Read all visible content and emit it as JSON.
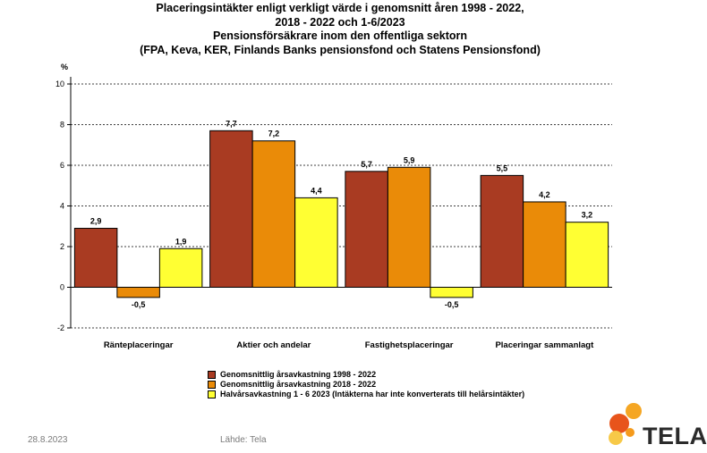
{
  "title_lines": [
    "Placeringsintäkter enligt verkligt värde i genomsnitt åren 1998 - 2022,",
    "2018 - 2022 och 1-6/2023",
    "Pensionsförsäkrare inom den offentliga sektorn",
    "(FPA, Keva, KER, Finlands Banks pensionsfond och Statens Pensionsfond)"
  ],
  "chart_data": {
    "type": "bar",
    "ylabel": "%",
    "ylim": [
      -2,
      10
    ],
    "yticks": [
      -2,
      0,
      2,
      4,
      6,
      8,
      10
    ],
    "grid": true,
    "categories": [
      "Ränteplaceringar",
      "Aktier och andelar",
      "Fastighetsplaceringar",
      "Placeringar sammanlagt"
    ],
    "series": [
      {
        "name": "Genomsnittlig årsavkastning 1998 - 2022",
        "color": "#a93b22",
        "values": [
          2.9,
          7.7,
          5.7,
          5.5
        ],
        "labels": [
          "2,9",
          "7,7",
          "5,7",
          "5,5"
        ]
      },
      {
        "name": "Genomsnittlig årsavkastning 2018 - 2022",
        "color": "#ea8b08",
        "values": [
          -0.5,
          7.2,
          5.9,
          4.2
        ],
        "labels": [
          "-0,5",
          "7,2",
          "5,9",
          "4,2"
        ]
      },
      {
        "name": "Halvårsavkastning 1 - 6 2023 (Intäkterna har inte konverterats till helårsintäkter)",
        "color": "#ffff33",
        "values": [
          1.9,
          4.4,
          -0.5,
          3.2
        ],
        "labels": [
          "1,9",
          "4,4",
          "-0,5",
          "3,2"
        ]
      }
    ],
    "legend_position": "bottom"
  },
  "footer": {
    "date": "28.8.2023",
    "source": "Lähde: Tela"
  },
  "logo": {
    "text": "TELA",
    "colors": [
      "#f5a623",
      "#e8541b",
      "#f7c948"
    ]
  }
}
